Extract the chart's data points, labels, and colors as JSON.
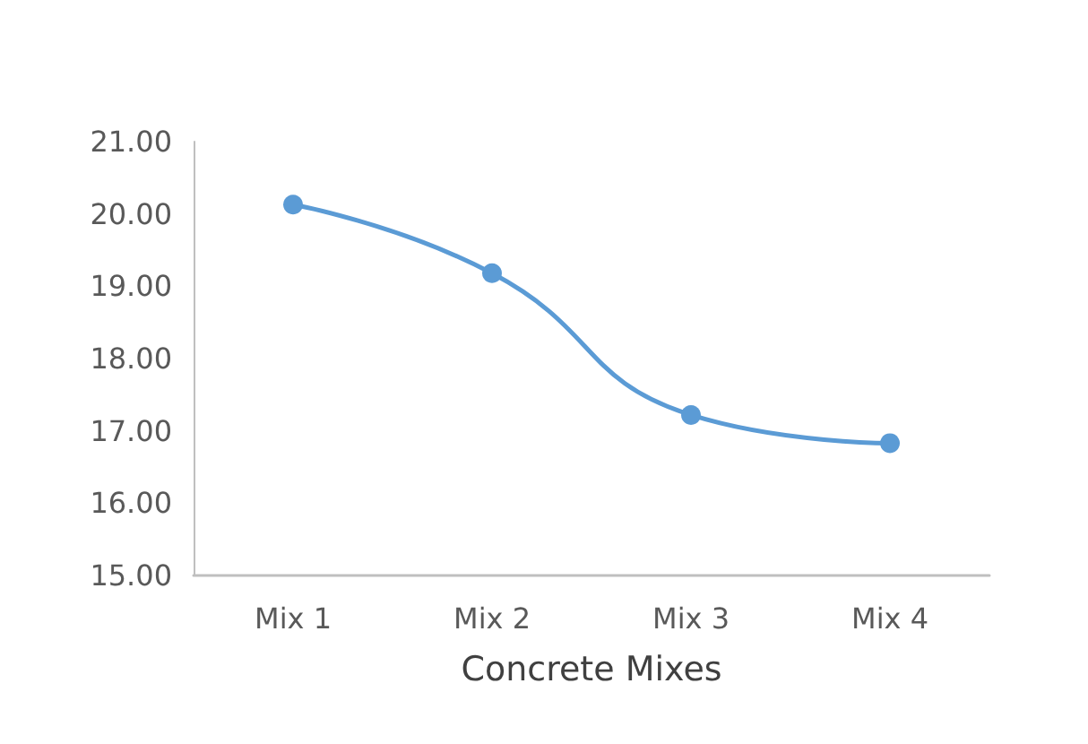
{
  "chart_data": {
    "type": "line",
    "xlabel": "Concrete Mixes",
    "categories": [
      "Mix 1",
      "Mix 2",
      "Mix 3",
      "Mix 4"
    ],
    "series": [
      {
        "color": "#5b9bd5",
        "values": [
          20.13,
          19.18,
          17.22,
          16.83
        ]
      }
    ],
    "ylim": [
      15,
      21
    ],
    "yticks": [
      {
        "value": 15,
        "label": "15.00"
      },
      {
        "value": 16,
        "label": "16.00"
      },
      {
        "value": 17,
        "label": "17.00"
      },
      {
        "value": 18,
        "label": "18.00"
      },
      {
        "value": 19,
        "label": "19.00"
      },
      {
        "value": 20,
        "label": "20.00"
      },
      {
        "value": 21,
        "label": "21.00"
      }
    ],
    "grid": false,
    "marker": "circle",
    "line_style": "solid"
  }
}
